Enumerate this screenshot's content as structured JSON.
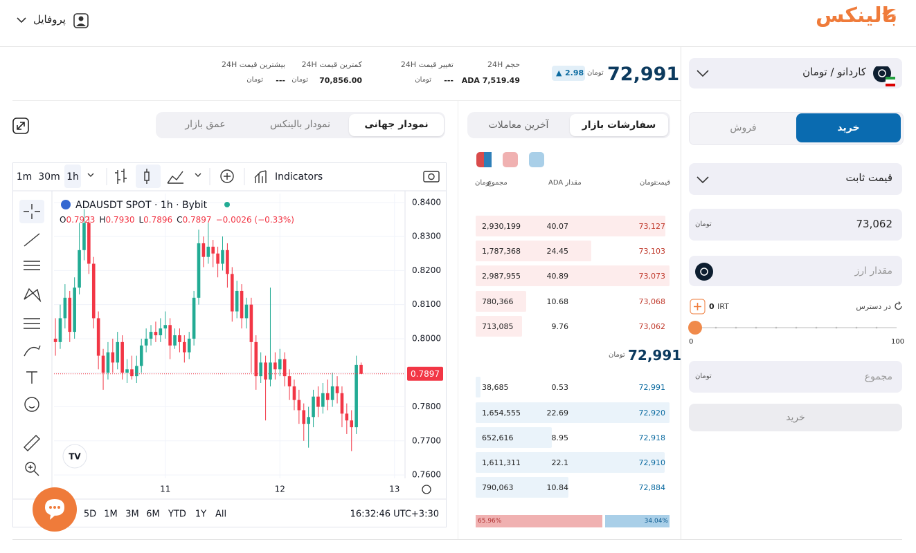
{
  "header": {
    "logo": "بالینکس",
    "profile": "پروفایل"
  },
  "currency": "تومان",
  "ticker": {
    "price": "72,991",
    "change": "2.98",
    "stats": [
      {
        "label": "حجم 24H",
        "value": "ADA 7,519.49"
      },
      {
        "label": "تغییر قیمت 24H",
        "value": "---"
      },
      {
        "label": "کمترین قیمت 24H",
        "value": "70,856.00"
      },
      {
        "label": "بیشترین قیمت 24H",
        "value": "---"
      }
    ]
  },
  "chart_tabs": [
    "نمودار جهانی",
    "نمودار بالینکس",
    "عمق بازار"
  ],
  "toolbar": {
    "intervals": [
      "1m",
      "30m",
      "1h"
    ],
    "indicators": "Indicators"
  },
  "ranges": [
    "5D",
    "1M",
    "3M",
    "6M",
    "YTD",
    "1Y",
    "All"
  ],
  "clock": "16:32:46 UTC+3:30",
  "chart_data": {
    "type": "candlestick",
    "title": "ADAUSDT SPOT · 1h · Bybit",
    "legend": [
      "O",
      "0.7923",
      "H",
      "0.7930",
      "L",
      "0.7896",
      "C",
      "0.7897",
      "−0.0026 (−0.33%)"
    ],
    "x": [
      -23,
      -22,
      -21,
      -20,
      -19,
      -18,
      -17,
      -16,
      -15,
      -14,
      -13,
      -12,
      -11,
      -10,
      -9,
      -8,
      -7,
      -6,
      -5,
      -4,
      -3,
      -2,
      -1,
      0,
      1,
      2,
      3,
      4,
      5,
      6,
      7,
      8,
      9,
      10,
      11,
      12,
      13,
      14,
      15,
      16,
      17,
      18,
      19,
      20,
      21,
      22,
      23,
      24,
      25,
      26,
      27,
      28,
      29,
      30,
      31,
      32,
      33,
      34,
      35,
      36,
      37,
      38,
      39,
      40,
      41
    ],
    "open": [
      0.8,
      0.799,
      0.806,
      0.812,
      0.802,
      0.815,
      0.826,
      0.834,
      0.822,
      0.806,
      0.795,
      0.79,
      0.796,
      0.793,
      0.799,
      0.79,
      0.791,
      0.789,
      0.792,
      0.798,
      0.8,
      0.802,
      0.801,
      0.803,
      0.804,
      0.798,
      0.801,
      0.799,
      0.796,
      0.8,
      0.812,
      0.828,
      0.824,
      0.827,
      0.825,
      0.822,
      0.826,
      0.819,
      0.808,
      0.814,
      0.806,
      0.81,
      0.799,
      0.789,
      0.793,
      0.788,
      0.793,
      0.791,
      0.794,
      0.789,
      0.786,
      0.782,
      0.779,
      0.775,
      0.777,
      0.783,
      0.78,
      0.784,
      0.782,
      0.786,
      0.784,
      0.778,
      0.776,
      0.774,
      0.7923
    ],
    "high": [
      0.806,
      0.81,
      0.816,
      0.814,
      0.818,
      0.834,
      0.838,
      0.836,
      0.824,
      0.808,
      0.797,
      0.799,
      0.8,
      0.802,
      0.801,
      0.794,
      0.795,
      0.795,
      0.8,
      0.803,
      0.804,
      0.805,
      0.806,
      0.808,
      0.806,
      0.803,
      0.803,
      0.801,
      0.802,
      0.814,
      0.832,
      0.83,
      0.834,
      0.829,
      0.827,
      0.83,
      0.828,
      0.821,
      0.817,
      0.816,
      0.812,
      0.812,
      0.801,
      0.796,
      0.795,
      0.815,
      0.796,
      0.797,
      0.796,
      0.791,
      0.788,
      0.785,
      0.781,
      0.78,
      0.785,
      0.786,
      0.787,
      0.788,
      0.79,
      0.789,
      0.786,
      0.781,
      0.779,
      0.795,
      0.793
    ],
    "low": [
      0.795,
      0.797,
      0.803,
      0.799,
      0.8,
      0.813,
      0.823,
      0.819,
      0.803,
      0.791,
      0.785,
      0.788,
      0.79,
      0.791,
      0.788,
      0.787,
      0.788,
      0.787,
      0.79,
      0.796,
      0.798,
      0.799,
      0.799,
      0.8,
      0.794,
      0.797,
      0.796,
      0.793,
      0.794,
      0.798,
      0.81,
      0.821,
      0.822,
      0.821,
      0.818,
      0.82,
      0.815,
      0.805,
      0.806,
      0.803,
      0.803,
      0.79,
      0.785,
      0.787,
      0.776,
      0.786,
      0.788,
      0.789,
      0.786,
      0.782,
      0.779,
      0.775,
      0.77,
      0.768,
      0.774,
      0.777,
      0.778,
      0.779,
      0.78,
      0.781,
      0.774,
      0.772,
      0.767,
      0.772,
      0.7896
    ],
    "close": [
      0.799,
      0.806,
      0.812,
      0.802,
      0.815,
      0.826,
      0.834,
      0.822,
      0.806,
      0.795,
      0.79,
      0.796,
      0.793,
      0.799,
      0.79,
      0.791,
      0.789,
      0.792,
      0.798,
      0.8,
      0.802,
      0.801,
      0.803,
      0.804,
      0.798,
      0.801,
      0.799,
      0.796,
      0.8,
      0.812,
      0.828,
      0.824,
      0.827,
      0.825,
      0.822,
      0.826,
      0.819,
      0.808,
      0.814,
      0.806,
      0.81,
      0.799,
      0.789,
      0.793,
      0.788,
      0.793,
      0.791,
      0.794,
      0.789,
      0.786,
      0.782,
      0.779,
      0.775,
      0.777,
      0.783,
      0.78,
      0.784,
      0.782,
      0.786,
      0.784,
      0.778,
      0.776,
      0.774,
      0.7923,
      0.7897
    ],
    "up_color": "#22ab94",
    "down_color": "#f23645",
    "xlim": [
      -23.3,
      50.2
    ],
    "xticks": [
      {
        "value": 0,
        "label": "11"
      },
      {
        "value": 24,
        "label": "12"
      },
      {
        "value": 48,
        "label": "13"
      }
    ],
    "ylim": [
      0.759,
      0.8426
    ],
    "yticks": [
      {
        "value": 0.76,
        "label": "0.7600"
      },
      {
        "value": 0.77,
        "label": "0.7700"
      },
      {
        "value": 0.78,
        "label": "0.7800"
      },
      {
        "value": 0.79,
        "label": "0.7900"
      },
      {
        "value": 0.8,
        "label": "0.8000"
      },
      {
        "value": 0.81,
        "label": "0.8100"
      },
      {
        "value": 0.82,
        "label": "0.8200"
      },
      {
        "value": 0.83,
        "label": "0.8300"
      },
      {
        "value": 0.84,
        "label": "0.8400"
      }
    ],
    "last_price": {
      "value": 0.7897,
      "label": "0.7897"
    },
    "grid": true
  },
  "orderbook": {
    "tabs": [
      "سفارشات بازار",
      "آخرین معاملات"
    ],
    "headers": {
      "price": "قیمت",
      "amount": "مقدار ADA",
      "total": "مجموع"
    },
    "asks": [
      {
        "price": "73,127",
        "amount": 40.07,
        "total": "2,930,199"
      },
      {
        "price": "73,103",
        "amount": 24.45,
        "total": "1,787,368"
      },
      {
        "price": "73,073",
        "amount": 40.89,
        "total": "2,987,955"
      },
      {
        "price": "73,068",
        "amount": 10.68,
        "total": "780,366"
      },
      {
        "price": "73,062",
        "amount": 9.76,
        "total": "713,085"
      }
    ],
    "mid": "72,991",
    "bids": [
      {
        "price": "72,991",
        "amount": 0.53,
        "total": "38,685"
      },
      {
        "price": "72,920",
        "amount": 22.69,
        "total": "1,654,555"
      },
      {
        "price": "72,918",
        "amount": 8.95,
        "total": "652,616"
      },
      {
        "price": "72,910",
        "amount": 22.1,
        "total": "1,611,311"
      },
      {
        "price": "72,884",
        "amount": 10.84,
        "total": "790,063"
      }
    ],
    "ratio": [
      {
        "value": 65.96,
        "label": "65.96%"
      },
      {
        "value": 34.04,
        "label": "34.04%"
      }
    ]
  },
  "order_form": {
    "market": "کاردانو / تومان",
    "sides": [
      "خرید",
      "فروش"
    ],
    "order_type": "قیمت ثابت",
    "price": "73,062",
    "amount_placeholder": "مقدار ارز",
    "available_label": "در دسترس",
    "available": "0",
    "available_unit": "IRT",
    "slider": [
      0,
      100
    ],
    "total_placeholder": "مجموع",
    "submit": "خرید"
  }
}
